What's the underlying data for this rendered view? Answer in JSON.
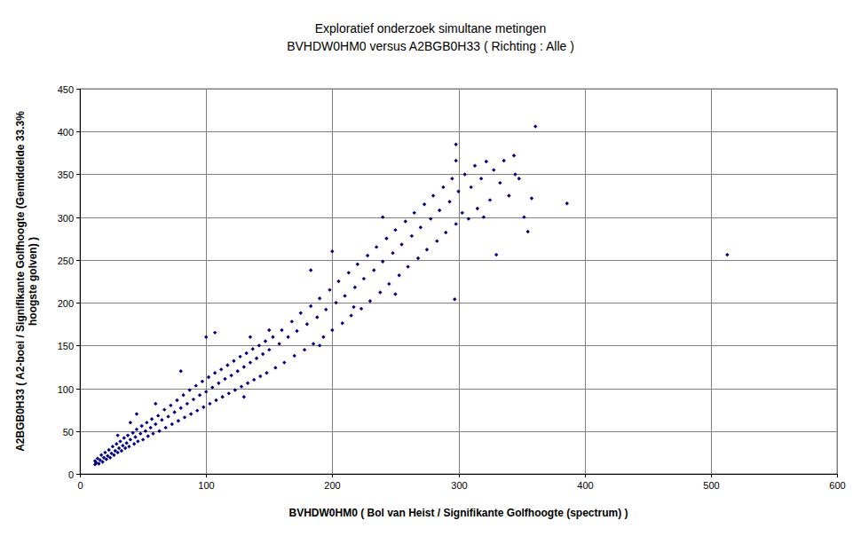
{
  "chart_data": {
    "type": "scatter",
    "title": "Exploratief onderzoek simultane metingen",
    "subtitle": "BVHDW0HM0 versus A2BGB0H33 ( Richting : Alle )",
    "x_label": "BVHDW0HM0 ( Bol van Heist / Signifikante Golfhoogte (spectrum) )",
    "y_label": "A2BGB0H33 ( A2-boei / Signifikante Golfhoogte (Gemiddelde 33.3% hoogste golven) )",
    "color": "#000080",
    "marker": "diamond",
    "grid": true,
    "xlim": [
      0,
      600
    ],
    "xticks": [
      0,
      100,
      200,
      300,
      400,
      500,
      600
    ],
    "ylim": [
      0,
      450
    ],
    "yticks": [
      0,
      50,
      100,
      150,
      200,
      250,
      300,
      350,
      400,
      450
    ],
    "x": [
      12,
      12,
      13,
      14,
      15,
      16,
      17,
      18,
      19,
      20,
      21,
      22,
      23,
      24,
      25,
      26,
      27,
      28,
      29,
      30,
      31,
      32,
      33,
      34,
      35,
      36,
      37,
      38,
      39,
      40,
      42,
      43,
      44,
      45,
      46,
      48,
      49,
      50,
      52,
      53,
      54,
      56,
      57,
      58,
      60,
      40,
      45,
      30,
      60,
      62,
      63,
      65,
      67,
      68,
      70,
      72,
      73,
      75,
      77,
      78,
      80,
      82,
      83,
      85,
      87,
      88,
      90,
      92,
      93,
      95,
      97,
      98,
      100,
      102,
      103,
      105,
      107,
      108,
      110,
      112,
      113,
      115,
      117,
      118,
      120,
      122,
      123,
      125,
      127,
      128,
      130,
      132,
      133,
      135,
      137,
      138,
      140,
      142,
      143,
      145,
      147,
      148,
      150,
      100,
      107,
      80,
      135,
      150,
      130,
      153,
      155,
      158,
      160,
      162,
      165,
      168,
      170,
      172,
      175,
      178,
      180,
      183,
      185,
      188,
      190,
      193,
      195,
      198,
      200,
      203,
      205,
      208,
      210,
      213,
      215,
      218,
      220,
      223,
      225,
      228,
      230,
      233,
      235,
      238,
      240,
      243,
      245,
      248,
      250,
      253,
      255,
      258,
      260,
      263,
      265,
      268,
      270,
      273,
      275,
      278,
      280,
      283,
      285,
      288,
      290,
      293,
      295,
      298,
      300,
      183,
      190,
      200,
      217,
      240,
      250,
      303,
      305,
      308,
      310,
      313,
      315,
      318,
      320,
      322,
      325,
      328,
      330,
      333,
      336,
      340,
      344,
      345,
      348,
      352,
      355,
      358,
      361,
      386,
      513,
      298,
      298,
      297
    ],
    "values": [
      11,
      15,
      13,
      18,
      12,
      16,
      22,
      14,
      19,
      25,
      17,
      21,
      28,
      19,
      24,
      32,
      22,
      27,
      35,
      25,
      30,
      38,
      27,
      33,
      42,
      30,
      36,
      45,
      32,
      40,
      48,
      35,
      43,
      52,
      38,
      47,
      56,
      40,
      50,
      60,
      44,
      54,
      64,
      47,
      58,
      60,
      70,
      45,
      82,
      68,
      50,
      63,
      75,
      54,
      67,
      80,
      58,
      72,
      86,
      62,
      77,
      92,
      66,
      82,
      98,
      70,
      87,
      103,
      74,
      92,
      108,
      78,
      96,
      113,
      82,
      101,
      118,
      86,
      106,
      122,
      90,
      111,
      127,
      94,
      115,
      132,
      98,
      120,
      137,
      102,
      125,
      141,
      106,
      130,
      146,
      110,
      135,
      150,
      114,
      140,
      155,
      118,
      145,
      160,
      165,
      120,
      160,
      168,
      90,
      160,
      124,
      152,
      168,
      130,
      160,
      178,
      138,
      167,
      188,
      145,
      175,
      196,
      152,
      183,
      205,
      160,
      192,
      215,
      168,
      200,
      225,
      176,
      208,
      235,
      185,
      218,
      245,
      193,
      228,
      255,
      202,
      238,
      265,
      212,
      248,
      275,
      222,
      258,
      285,
      232,
      268,
      295,
      242,
      278,
      305,
      252,
      288,
      315,
      262,
      298,
      325,
      272,
      308,
      335,
      282,
      318,
      345,
      292,
      330,
      238,
      150,
      260,
      195,
      300,
      210,
      305,
      350,
      298,
      335,
      360,
      310,
      345,
      300,
      365,
      320,
      355,
      256,
      340,
      366,
      325,
      372,
      350,
      345,
      300,
      283,
      322,
      406,
      316,
      256,
      385,
      366,
      204
    ]
  }
}
